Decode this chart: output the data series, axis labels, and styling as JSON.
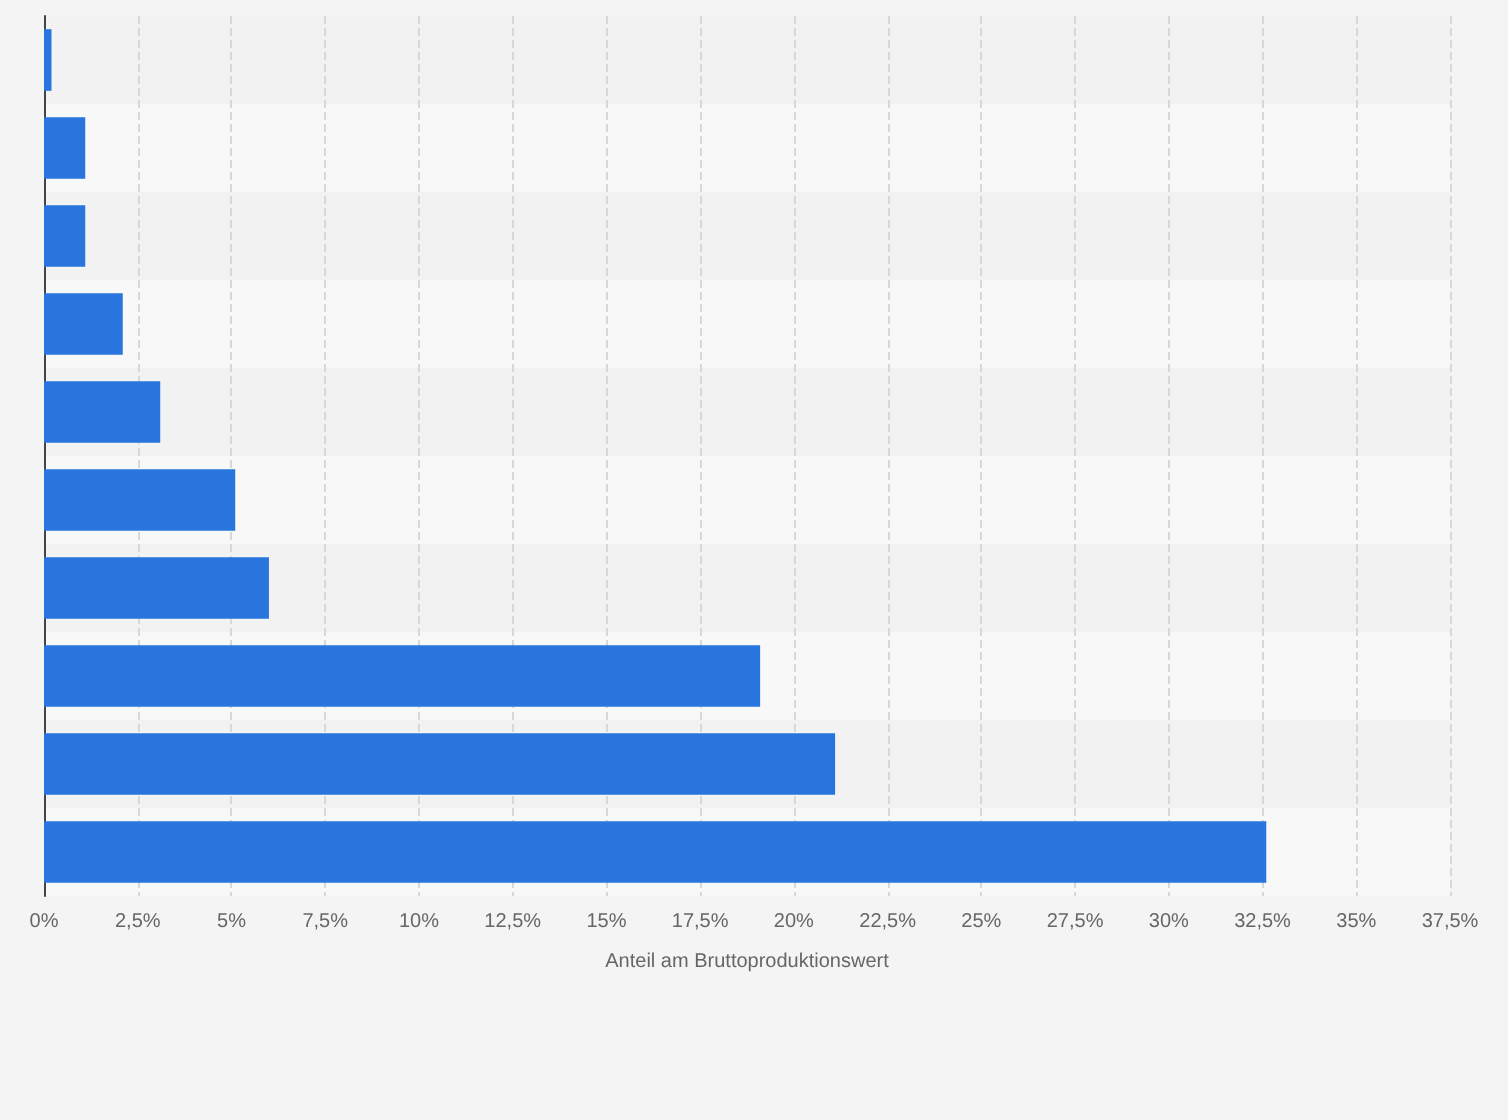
{
  "chart_data": {
    "type": "bar",
    "orientation": "horizontal",
    "xlabel": "Anteil am Bruttoproduktionswert",
    "categories": [
      null,
      null,
      null,
      null,
      null,
      null,
      null,
      null,
      null,
      null
    ],
    "values": [
      0.2,
      1.1,
      1.1,
      2.1,
      3.1,
      5.1,
      6.0,
      19.1,
      21.1,
      32.6
    ],
    "color": "#2876dd",
    "xlim": [
      0,
      37.5
    ],
    "xticks": [
      {
        "value": 0,
        "label": "0%"
      },
      {
        "value": 2.5,
        "label": "2,5%"
      },
      {
        "value": 5,
        "label": "5%"
      },
      {
        "value": 7.5,
        "label": "7,5%"
      },
      {
        "value": 10,
        "label": "10%"
      },
      {
        "value": 12.5,
        "label": "12,5%"
      },
      {
        "value": 15,
        "label": "15%"
      },
      {
        "value": 17.5,
        "label": "17,5%"
      },
      {
        "value": 20,
        "label": "20%"
      },
      {
        "value": 22.5,
        "label": "22,5%"
      },
      {
        "value": 25,
        "label": "25%"
      },
      {
        "value": 27.5,
        "label": "27,5%"
      },
      {
        "value": 30,
        "label": "30%"
      },
      {
        "value": 32.5,
        "label": "32,5%"
      },
      {
        "value": 35,
        "label": "35%"
      },
      {
        "value": 37.5,
        "label": "37,5%"
      }
    ],
    "grid": "x"
  }
}
